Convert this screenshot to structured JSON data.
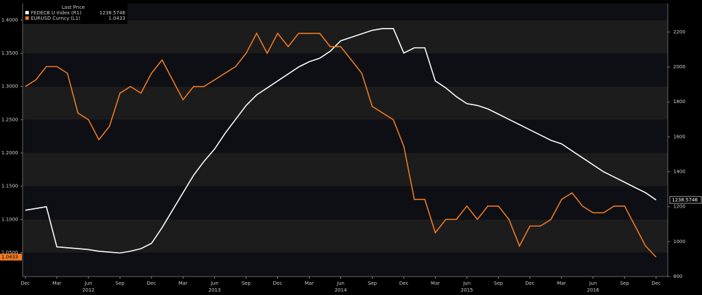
{
  "chart_data": {
    "type": "line",
    "legend_title": "Last Price",
    "x": [
      "2011-12",
      "2012-01",
      "2012-02",
      "2012-03",
      "2012-04",
      "2012-05",
      "2012-06",
      "2012-07",
      "2012-08",
      "2012-09",
      "2012-10",
      "2012-11",
      "2012-12",
      "2013-01",
      "2013-02",
      "2013-03",
      "2013-04",
      "2013-05",
      "2013-06",
      "2013-07",
      "2013-08",
      "2013-09",
      "2013-10",
      "2013-11",
      "2013-12",
      "2014-01",
      "2014-02",
      "2014-03",
      "2014-04",
      "2014-05",
      "2014-06",
      "2014-07",
      "2014-08",
      "2014-09",
      "2014-10",
      "2014-11",
      "2014-12",
      "2015-01",
      "2015-02",
      "2015-03",
      "2015-04",
      "2015-05",
      "2015-06",
      "2015-07",
      "2015-08",
      "2015-09",
      "2015-10",
      "2015-11",
      "2015-12",
      "2016-01",
      "2016-02",
      "2016-03",
      "2016-04",
      "2016-05",
      "2016-06",
      "2016-07",
      "2016-08",
      "2016-09",
      "2016-10",
      "2016-11",
      "2016-12"
    ],
    "xticks": [
      {
        "value": "2011-12",
        "label": "Dec"
      },
      {
        "value": "2012-03",
        "label": "Mar"
      },
      {
        "value": "2012-06",
        "label": "Jun"
      },
      {
        "value": "2012-09",
        "label": "Sep"
      },
      {
        "value": "2012-12",
        "label": "Dec"
      },
      {
        "value": "2013-03",
        "label": "Mar"
      },
      {
        "value": "2013-06",
        "label": "Jun"
      },
      {
        "value": "2013-09",
        "label": "Sep"
      },
      {
        "value": "2013-12",
        "label": "Dec"
      },
      {
        "value": "2014-03",
        "label": "Mar"
      },
      {
        "value": "2014-06",
        "label": "Jun"
      },
      {
        "value": "2014-09",
        "label": "Sep"
      },
      {
        "value": "2014-12",
        "label": "Dec"
      },
      {
        "value": "2015-03",
        "label": "Mar"
      },
      {
        "value": "2015-06",
        "label": "Jun"
      },
      {
        "value": "2015-09",
        "label": "Sep"
      },
      {
        "value": "2015-12",
        "label": "Dec"
      },
      {
        "value": "2016-03",
        "label": "Mar"
      },
      {
        "value": "2016-06",
        "label": "Jun"
      },
      {
        "value": "2016-09",
        "label": "Sep"
      },
      {
        "value": "2016-12",
        "label": "Dec"
      }
    ],
    "xyears": [
      {
        "value": "2012-06",
        "label": "2012"
      },
      {
        "value": "2013-06",
        "label": "2013"
      },
      {
        "value": "2014-06",
        "label": "2014"
      },
      {
        "value": "2015-06",
        "label": "2015"
      },
      {
        "value": "2016-06",
        "label": "2016"
      }
    ],
    "ylim": [
      1.014,
      1.425
    ],
    "yticks": [
      {
        "value": 1.05,
        "label": "1.0500"
      },
      {
        "value": 1.1,
        "label": "1.1000"
      },
      {
        "value": 1.15,
        "label": "1.1500"
      },
      {
        "value": 1.2,
        "label": "1.2000"
      },
      {
        "value": 1.25,
        "label": "1.2500"
      },
      {
        "value": 1.3,
        "label": "1.3000"
      },
      {
        "value": 1.35,
        "label": "1.3500"
      },
      {
        "value": 1.4,
        "label": "1.4000"
      }
    ],
    "y2lim": [
      800,
      2364
    ],
    "y2ticks": [
      800,
      1000,
      1200,
      1400,
      1600,
      1800,
      2000,
      2200
    ],
    "series": [
      {
        "name": "FEDECB U Index (R1)",
        "axis": "y2",
        "color": "#ffffff",
        "last_label": "1238.5746",
        "values": [
          1180,
          1190,
          1200,
          970,
          965,
          960,
          955,
          945,
          940,
          935,
          945,
          960,
          990,
          1080,
          1180,
          1280,
          1380,
          1460,
          1530,
          1620,
          1700,
          1780,
          1840,
          1880,
          1920,
          1960,
          2000,
          2030,
          2050,
          2090,
          2150,
          2170,
          2190,
          2210,
          2220,
          2220,
          2080,
          2110,
          2110,
          1920,
          1880,
          1830,
          1790,
          1780,
          1760,
          1730,
          1700,
          1670,
          1640,
          1610,
          1580,
          1560,
          1520,
          1480,
          1440,
          1400,
          1370,
          1340,
          1310,
          1280,
          1238.5746
        ]
      },
      {
        "name": "EURUSD Curncy (L1)",
        "axis": "y",
        "color": "#f07b22",
        "last_label": "1.0433",
        "values": [
          1.3,
          1.31,
          1.33,
          1.33,
          1.32,
          1.26,
          1.25,
          1.22,
          1.24,
          1.29,
          1.3,
          1.29,
          1.32,
          1.34,
          1.31,
          1.28,
          1.3,
          1.3,
          1.31,
          1.32,
          1.33,
          1.35,
          1.38,
          1.35,
          1.38,
          1.36,
          1.38,
          1.38,
          1.38,
          1.36,
          1.36,
          1.34,
          1.32,
          1.27,
          1.26,
          1.25,
          1.21,
          1.13,
          1.13,
          1.08,
          1.1,
          1.1,
          1.12,
          1.1,
          1.12,
          1.12,
          1.1,
          1.06,
          1.09,
          1.09,
          1.1,
          1.13,
          1.14,
          1.12,
          1.11,
          1.11,
          1.12,
          1.12,
          1.09,
          1.06,
          1.0433
        ]
      }
    ]
  }
}
